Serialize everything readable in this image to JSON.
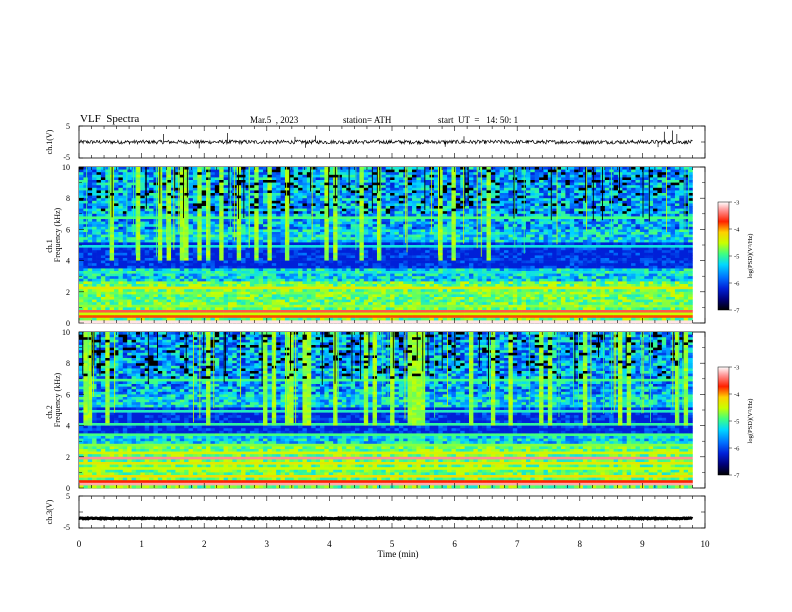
{
  "header": {
    "title": "VLF  Spectra",
    "date": "Mar.5  , 2023",
    "station": "station= ATH",
    "start": "start  UT  =   14: 50: 1"
  },
  "chart_data": [
    {
      "type": "line",
      "panel": "ch1-waveform",
      "ylabel": "ch.1(V)",
      "ylim": [
        -5,
        5
      ],
      "yticks": [
        "5",
        "-5"
      ],
      "xlim": [
        0,
        10
      ],
      "x_end": 9.8,
      "baseline": 0,
      "noise_amplitude": 0.6,
      "spikes": [
        {
          "x": 1.35,
          "y": 2.5
        },
        {
          "x": 1.92,
          "y": -2
        },
        {
          "x": 2.37,
          "y": 2.8
        },
        {
          "x": 3.45,
          "y": 1.6
        },
        {
          "x": 3.62,
          "y": -1.8
        },
        {
          "x": 3.78,
          "y": 2.0
        },
        {
          "x": 5.85,
          "y": -1.5
        },
        {
          "x": 6.15,
          "y": 1.8
        },
        {
          "x": 9.25,
          "y": -1.6
        },
        {
          "x": 9.35,
          "y": 3.2
        },
        {
          "x": 9.48,
          "y": 3.6
        },
        {
          "x": 9.55,
          "y": 2.5
        }
      ]
    },
    {
      "type": "heatmap",
      "panel": "ch1-spectrogram",
      "ylabel_top": "ch.1",
      "ylabel": "Frequency  (kHz)",
      "ylim": [
        0,
        10
      ],
      "yticks": [
        "0",
        "2",
        "4",
        "6",
        "8",
        "10"
      ],
      "xlim": [
        0,
        10
      ],
      "x_end": 9.8,
      "colorbar": {
        "label": "log(PSD)(V²/Hz)",
        "range": [
          -7,
          -3
        ],
        "ticks": [
          "-3",
          "-4",
          "-5",
          "-6",
          "-7"
        ]
      },
      "bands": [
        {
          "f": 0.1,
          "level": -3.1
        },
        {
          "f": 0.35,
          "level": -3.9
        },
        {
          "f": 0.55,
          "level": -4.6
        },
        {
          "f": 0.75,
          "level": -3.6
        },
        {
          "f": 1.1,
          "level": -4.8
        },
        {
          "f": 1.5,
          "level": -4.8
        },
        {
          "f": 1.9,
          "level": -4.9
        },
        {
          "f": 2.2,
          "level": -4.4
        },
        {
          "f": 2.5,
          "level": -5.1
        },
        {
          "f": 3.3,
          "level": -5.3
        },
        {
          "f": 4.9,
          "level": -5.3
        },
        {
          "f": 6.8,
          "level": -5.0
        }
      ]
    },
    {
      "type": "heatmap",
      "panel": "ch2-spectrogram",
      "ylabel_top": "ch.2",
      "ylabel": "Frequency  (kHz)",
      "ylim": [
        0,
        10
      ],
      "yticks": [
        "0",
        "2",
        "4",
        "6",
        "8",
        "10"
      ],
      "xlim": [
        0,
        10
      ],
      "x_end": 9.8,
      "colorbar": {
        "label": "log(PSD)(V²/Hz)",
        "range": [
          -7,
          -3
        ],
        "ticks": [
          "-3",
          "-4",
          "-5",
          "-6",
          "-7"
        ]
      },
      "bands": [
        {
          "f": 0.2,
          "level": -3.3
        },
        {
          "f": 0.45,
          "level": -3.8
        },
        {
          "f": 0.8,
          "level": -4.3
        },
        {
          "f": 1.2,
          "level": -4.6
        },
        {
          "f": 1.6,
          "level": -4.4
        },
        {
          "f": 1.95,
          "level": -3.4
        },
        {
          "f": 2.3,
          "level": -4.5
        },
        {
          "f": 2.8,
          "level": -4.8
        },
        {
          "f": 3.4,
          "level": -5.0
        },
        {
          "f": 4.1,
          "level": -5.1
        },
        {
          "f": 4.9,
          "level": -5.2
        },
        {
          "f": 6.9,
          "level": -5.0
        }
      ]
    },
    {
      "type": "line",
      "panel": "ch3-waveform",
      "ylabel": "ch.3(V)",
      "ylim": [
        -5,
        5
      ],
      "yticks": [
        "5",
        "-5"
      ],
      "xlim": [
        0,
        10
      ],
      "x_end": 9.8,
      "baseline": -2,
      "noise_amplitude": 0.15
    }
  ],
  "xaxis": {
    "label": "Time  (min)",
    "ticks": [
      "0",
      "1",
      "2",
      "3",
      "4",
      "5",
      "6",
      "7",
      "8",
      "9",
      "10"
    ]
  },
  "colors": {
    "colormap": [
      "#000000",
      "#00007a",
      "#0020d8",
      "#0070ff",
      "#00d8ff",
      "#40ff80",
      "#c8ff00",
      "#ffd000",
      "#ff2000",
      "#ff9090",
      "#ffffff"
    ]
  }
}
